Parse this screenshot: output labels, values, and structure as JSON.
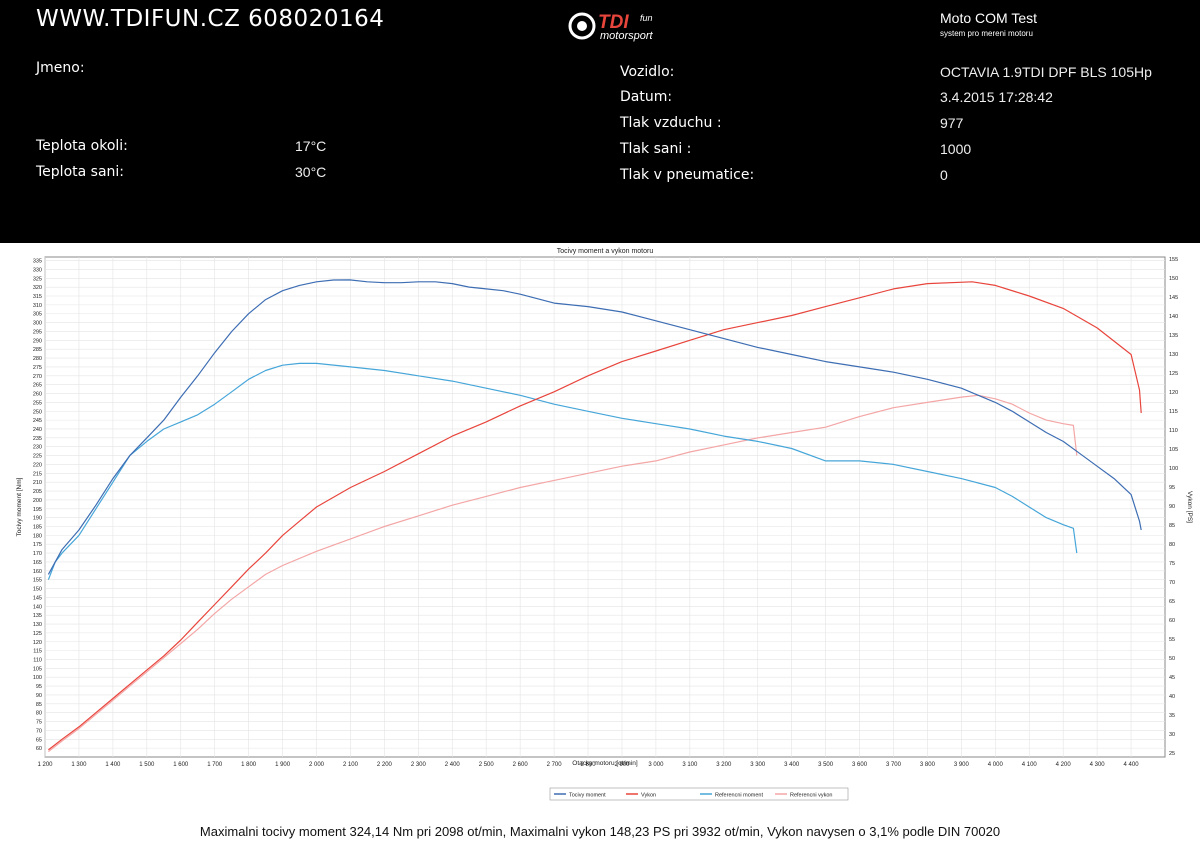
{
  "header": {
    "website": "WWW.TDIFUN.CZ 608020164",
    "logo_main": "TDI",
    "logo_small": "fun",
    "logo_sub": "motorsport",
    "test_title": "Moto COM Test",
    "test_subtitle": "system pro mereni motoru",
    "fields_left": [
      {
        "label": "Jmeno:",
        "value": ""
      },
      {
        "label": "Teplota okoli:",
        "value": "17°C"
      },
      {
        "label": "Teplota sani:",
        "value": "30°C"
      }
    ],
    "fields_right": [
      {
        "label": "Vozidlo:",
        "value": "OCTAVIA 1.9TDI DPF BLS 105Hp"
      },
      {
        "label": "Datum:",
        "value": "3.4.2015 17:28:42"
      },
      {
        "label": "Tlak vzduchu :",
        "value": "977"
      },
      {
        "label": "Tlak sani :",
        "value": "1000"
      },
      {
        "label": "Tlak v pneumatice:",
        "value": "0"
      }
    ]
  },
  "footer": {
    "summary": "Maximalni tocivy moment 324,14 Nm pri 2098 ot/min,  Maximalni vykon 148,23 PS pri 3932 ot/min,  Vykon navysen o 3,1% podle DIN 70020"
  },
  "colors": {
    "moment": "#3d6db3",
    "vykon": "#e8453c",
    "ref_moment": "#46a6d9",
    "ref_vykon": "#f4a6a6"
  },
  "chart_data": {
    "type": "line",
    "title": "Tocivy moment a vykon motoru",
    "xlabel": "Otacky motoru [ot/min]",
    "ylabel_left": "Tocivy moment [Nm]",
    "ylabel_right": "Vykon [PS]",
    "xlim": [
      1200,
      4500
    ],
    "ylim_left": [
      55,
      337
    ],
    "ylim_right": [
      23.9,
      155.5
    ],
    "grid": true,
    "legend_position": "bottom",
    "x_ticks": [
      1200,
      1300,
      1400,
      1500,
      1600,
      1700,
      1800,
      1900,
      2000,
      2100,
      2200,
      2300,
      2400,
      2500,
      2600,
      2700,
      2800,
      2900,
      3000,
      3100,
      3200,
      3300,
      3400,
      3500,
      3600,
      3700,
      3800,
      3900,
      4000,
      4100,
      4200,
      4300,
      4400
    ],
    "x_tick_labels": [
      "1 200",
      "1 300",
      "1 400",
      "1 500",
      "1 600",
      "1 700",
      "1 800",
      "1 900",
      "2 000",
      "2 100",
      "2 200",
      "2 300",
      "2 400",
      "2 500",
      "2 600",
      "2 700",
      "2 800",
      "2 900",
      "3 000",
      "3 100",
      "3 200",
      "3 300",
      "3 400",
      "3 500",
      "3 600",
      "3 700",
      "3 800",
      "3 900",
      "4 000",
      "4 100",
      "4 200",
      "4 300",
      "4 400"
    ],
    "y_left_ticks": [
      60,
      65,
      70,
      75,
      80,
      85,
      90,
      95,
      100,
      105,
      110,
      115,
      120,
      125,
      130,
      135,
      140,
      145,
      150,
      155,
      160,
      165,
      170,
      175,
      180,
      185,
      190,
      195,
      200,
      205,
      210,
      215,
      220,
      225,
      230,
      235,
      240,
      245,
      250,
      255,
      260,
      265,
      270,
      275,
      280,
      285,
      290,
      295,
      300,
      305,
      310,
      315,
      320,
      325,
      330,
      335
    ],
    "y_right_ticks": [
      25,
      30,
      35,
      40,
      45,
      50,
      55,
      60,
      65,
      70,
      75,
      80,
      85,
      90,
      95,
      100,
      105,
      110,
      115,
      120,
      125,
      130,
      135,
      140,
      145,
      150,
      155
    ],
    "legend": [
      "Tocivy moment",
      "Vykon",
      "Referencni moment",
      "Referencni vykon"
    ],
    "series": [
      {
        "name": "Tocivy moment",
        "axis": "left",
        "color_key": "moment",
        "points": [
          [
            1210,
            158
          ],
          [
            1250,
            172
          ],
          [
            1300,
            183
          ],
          [
            1350,
            197
          ],
          [
            1400,
            212
          ],
          [
            1450,
            225
          ],
          [
            1500,
            235
          ],
          [
            1550,
            245
          ],
          [
            1600,
            258
          ],
          [
            1650,
            270
          ],
          [
            1700,
            283
          ],
          [
            1750,
            295
          ],
          [
            1800,
            305
          ],
          [
            1850,
            313
          ],
          [
            1900,
            318
          ],
          [
            1950,
            321
          ],
          [
            2000,
            323
          ],
          [
            2050,
            324
          ],
          [
            2098,
            324.1
          ],
          [
            2150,
            323
          ],
          [
            2200,
            322.5
          ],
          [
            2250,
            322.5
          ],
          [
            2300,
            323
          ],
          [
            2350,
            323
          ],
          [
            2400,
            322
          ],
          [
            2450,
            320
          ],
          [
            2500,
            319
          ],
          [
            2550,
            318
          ],
          [
            2600,
            316
          ],
          [
            2700,
            311
          ],
          [
            2800,
            309
          ],
          [
            2900,
            306
          ],
          [
            3000,
            301
          ],
          [
            3100,
            296
          ],
          [
            3200,
            291
          ],
          [
            3300,
            286
          ],
          [
            3400,
            282
          ],
          [
            3500,
            278
          ],
          [
            3600,
            275
          ],
          [
            3700,
            272
          ],
          [
            3800,
            268
          ],
          [
            3900,
            263
          ],
          [
            3950,
            259
          ],
          [
            4000,
            255
          ],
          [
            4050,
            250
          ],
          [
            4100,
            244
          ],
          [
            4150,
            238
          ],
          [
            4200,
            233
          ],
          [
            4250,
            226
          ],
          [
            4300,
            219
          ],
          [
            4350,
            212
          ],
          [
            4400,
            203
          ],
          [
            4425,
            188
          ],
          [
            4430,
            183
          ]
        ]
      },
      {
        "name": "Vykon",
        "axis": "left",
        "color_key": "vykon",
        "points": [
          [
            1210,
            59
          ],
          [
            1250,
            65
          ],
          [
            1300,
            72
          ],
          [
            1350,
            80
          ],
          [
            1400,
            88
          ],
          [
            1450,
            96
          ],
          [
            1500,
            104
          ],
          [
            1550,
            112
          ],
          [
            1600,
            121
          ],
          [
            1650,
            131
          ],
          [
            1700,
            141
          ],
          [
            1750,
            151
          ],
          [
            1800,
            161
          ],
          [
            1850,
            170
          ],
          [
            1900,
            180
          ],
          [
            1950,
            188
          ],
          [
            2000,
            196
          ],
          [
            2100,
            207
          ],
          [
            2200,
            216
          ],
          [
            2300,
            226
          ],
          [
            2400,
            236
          ],
          [
            2500,
            244
          ],
          [
            2600,
            253
          ],
          [
            2700,
            261
          ],
          [
            2800,
            270
          ],
          [
            2900,
            278
          ],
          [
            3000,
            284
          ],
          [
            3100,
            290
          ],
          [
            3200,
            296
          ],
          [
            3300,
            300
          ],
          [
            3400,
            304
          ],
          [
            3500,
            309
          ],
          [
            3600,
            314
          ],
          [
            3700,
            319
          ],
          [
            3800,
            322
          ],
          [
            3932,
            323
          ],
          [
            4000,
            321
          ],
          [
            4100,
            315
          ],
          [
            4200,
            308
          ],
          [
            4300,
            297
          ],
          [
            4400,
            282
          ],
          [
            4425,
            262
          ],
          [
            4430,
            249
          ]
        ]
      },
      {
        "name": "Referencni moment",
        "axis": "left",
        "color_key": "ref_moment",
        "points": [
          [
            1210,
            155
          ],
          [
            1230,
            165
          ],
          [
            1250,
            170
          ],
          [
            1300,
            180
          ],
          [
            1350,
            195
          ],
          [
            1400,
            210
          ],
          [
            1450,
            225
          ],
          [
            1500,
            233
          ],
          [
            1550,
            240
          ],
          [
            1600,
            244
          ],
          [
            1650,
            248
          ],
          [
            1700,
            254
          ],
          [
            1750,
            261
          ],
          [
            1800,
            268
          ],
          [
            1850,
            273
          ],
          [
            1900,
            276
          ],
          [
            1950,
            277
          ],
          [
            2000,
            277
          ],
          [
            2100,
            275
          ],
          [
            2200,
            273
          ],
          [
            2300,
            270
          ],
          [
            2400,
            267
          ],
          [
            2500,
            263
          ],
          [
            2600,
            259
          ],
          [
            2700,
            254
          ],
          [
            2800,
            250
          ],
          [
            2900,
            246
          ],
          [
            3000,
            243
          ],
          [
            3100,
            240
          ],
          [
            3200,
            236
          ],
          [
            3300,
            233
          ],
          [
            3400,
            229
          ],
          [
            3500,
            222
          ],
          [
            3600,
            222
          ],
          [
            3700,
            220
          ],
          [
            3800,
            216
          ],
          [
            3900,
            212
          ],
          [
            4000,
            207
          ],
          [
            4050,
            202
          ],
          [
            4100,
            196
          ],
          [
            4150,
            190
          ],
          [
            4200,
            186
          ],
          [
            4230,
            184
          ],
          [
            4240,
            170
          ]
        ]
      },
      {
        "name": "Referencni vykon",
        "axis": "left",
        "color_key": "ref_vykon",
        "points": [
          [
            1210,
            58
          ],
          [
            1250,
            64
          ],
          [
            1300,
            71
          ],
          [
            1350,
            79
          ],
          [
            1400,
            87
          ],
          [
            1450,
            95
          ],
          [
            1500,
            103
          ],
          [
            1550,
            111
          ],
          [
            1600,
            119
          ],
          [
            1650,
            127
          ],
          [
            1700,
            136
          ],
          [
            1750,
            144
          ],
          [
            1800,
            151
          ],
          [
            1850,
            158
          ],
          [
            1900,
            163
          ],
          [
            2000,
            171
          ],
          [
            2100,
            178
          ],
          [
            2200,
            185
          ],
          [
            2300,
            191
          ],
          [
            2400,
            197
          ],
          [
            2500,
            202
          ],
          [
            2600,
            207
          ],
          [
            2700,
            211
          ],
          [
            2800,
            215
          ],
          [
            2900,
            219
          ],
          [
            3000,
            222
          ],
          [
            3100,
            227
          ],
          [
            3200,
            231
          ],
          [
            3300,
            235
          ],
          [
            3400,
            238
          ],
          [
            3500,
            241
          ],
          [
            3600,
            247
          ],
          [
            3700,
            252
          ],
          [
            3800,
            255
          ],
          [
            3900,
            258
          ],
          [
            3950,
            259
          ],
          [
            4000,
            257
          ],
          [
            4050,
            254
          ],
          [
            4100,
            249
          ],
          [
            4150,
            245
          ],
          [
            4200,
            243
          ],
          [
            4230,
            242
          ],
          [
            4240,
            225
          ]
        ]
      }
    ]
  }
}
